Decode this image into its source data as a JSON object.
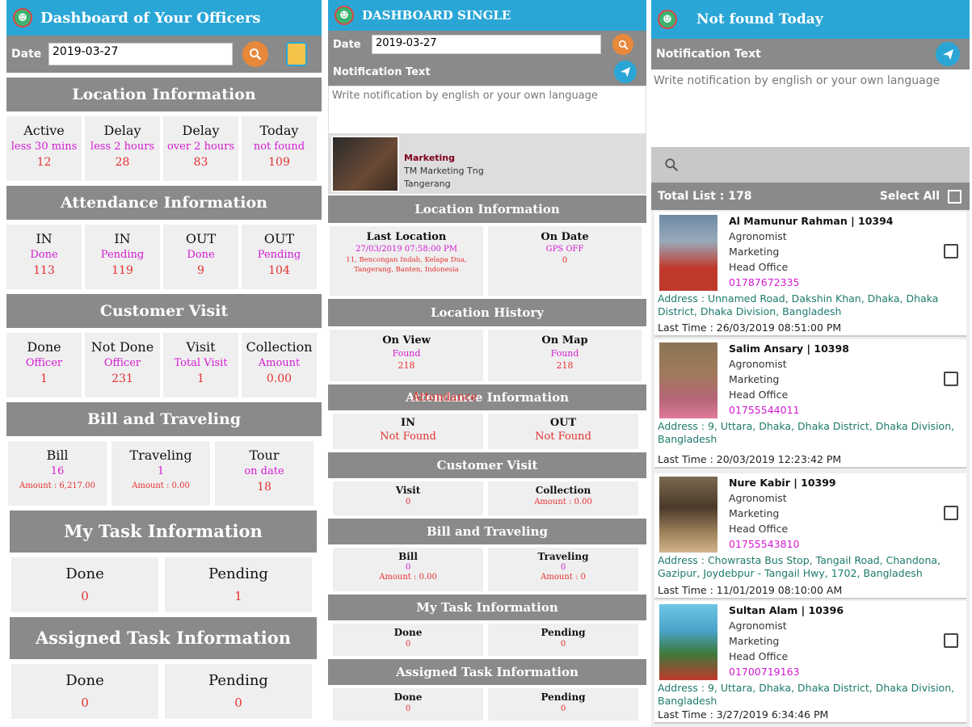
{
  "p1": {
    "title": "Dashboard of Your Officers",
    "date_label": "Date",
    "date_value": "2019-03-27",
    "sections": {
      "location": {
        "title": "Location Information",
        "cells": [
          {
            "h": "Active",
            "s": "less 30 mins",
            "v": "12"
          },
          {
            "h": "Delay",
            "s": "less 2 hours",
            "v": "28"
          },
          {
            "h": "Delay",
            "s": "over 2 hours",
            "v": "83"
          },
          {
            "h": "Today",
            "s": "not found",
            "v": "109"
          }
        ]
      },
      "attendance": {
        "title": "Attendance Information",
        "cells": [
          {
            "h": "IN",
            "s": "Done",
            "v": "113"
          },
          {
            "h": "IN",
            "s": "Pending",
            "v": "119"
          },
          {
            "h": "OUT",
            "s": "Done",
            "v": "9"
          },
          {
            "h": "OUT",
            "s": "Pending",
            "v": "104"
          }
        ]
      },
      "customer": {
        "title": "Customer Visit",
        "cells": [
          {
            "h": "Done",
            "s": "Officer",
            "v": "1"
          },
          {
            "h": "Not Done",
            "s": "Officer",
            "v": "231"
          },
          {
            "h": "Visit",
            "s": "Total Visit",
            "v": "1"
          },
          {
            "h": "Collection",
            "s": "Amount",
            "v": "0.00"
          }
        ]
      },
      "bill": {
        "title": "Bill and Traveling",
        "cells": [
          {
            "h": "Bill",
            "s": "16",
            "v": "Amount : 6,217.00"
          },
          {
            "h": "Traveling",
            "s": "1",
            "v": "Amount : 0.00"
          },
          {
            "h": "Tour",
            "s": "on date",
            "v": "18"
          }
        ]
      },
      "task": {
        "title": "My Task Information",
        "cells": [
          {
            "h": "Done",
            "v": "0"
          },
          {
            "h": "Pending",
            "v": "1"
          }
        ]
      },
      "assigned": {
        "title": "Assigned Task Information",
        "cells": [
          {
            "h": "Done",
            "v": "0"
          },
          {
            "h": "Pending",
            "v": "0"
          }
        ]
      }
    }
  },
  "p2": {
    "title": "DASHBOARD SINGLE",
    "date_label": "Date",
    "date_value": "2019-03-27",
    "notification_label": "Notification Text",
    "notification_placeholder": "Write notification by english or your own language",
    "profile": {
      "dept": "Marketing",
      "designation": "TM Marketing Tng",
      "location": "Tangerang"
    },
    "location": {
      "title": "Location Information",
      "last": {
        "h": "Last Location",
        "date": "27/03/2019 07:58:00 PM",
        "addr": "11, Bencongan Indah, Kelapa Dua, Tangerang, Banten, Indonesia"
      },
      "ondate": {
        "h": "On Date",
        "s": "GPS OFF",
        "v": "0"
      }
    },
    "history": {
      "title": "Location History",
      "cells": [
        {
          "h": "On View",
          "s": "Found",
          "v": "218"
        },
        {
          "h": "On Map",
          "s": "Found",
          "v": "218"
        }
      ]
    },
    "attendance": {
      "title": "Attendance Information",
      "overlay": "Attendance",
      "cells": [
        {
          "h": "IN",
          "v": "Not Found"
        },
        {
          "h": "OUT",
          "v": "Not Found"
        }
      ]
    },
    "customer": {
      "title": "Customer Visit",
      "cells": [
        {
          "h": "Visit",
          "v": "0"
        },
        {
          "h": "Collection",
          "v": "Amount : 0.00"
        }
      ]
    },
    "bill": {
      "title": "Bill and Traveling",
      "cells": [
        {
          "h": "Bill",
          "s": "0",
          "v": "Amount : 0.00"
        },
        {
          "h": "Traveling",
          "s": "0",
          "v": "Amount : 0"
        }
      ]
    },
    "task": {
      "title": "My Task Information",
      "cells": [
        {
          "h": "Done",
          "v": "0"
        },
        {
          "h": "Pending",
          "v": "0"
        }
      ]
    },
    "assigned": {
      "title": "Assigned Task Information",
      "cells": [
        {
          "h": "Done",
          "v": "0"
        },
        {
          "h": "Pending",
          "v": "0"
        }
      ]
    }
  },
  "p3": {
    "title": "Not found Today",
    "notification_label": "Notification Text",
    "notification_placeholder": "Write notification by english or your own language",
    "total_list": "Total List : 178",
    "select_all": "Select All",
    "officers": [
      {
        "name": "Al Mamunur Rahman | 10394",
        "role": "Agronomist",
        "dept": "Marketing",
        "office": "Head Office",
        "phone": "01787672335",
        "address": "Address : Unnamed Road, Dakshin Khan, Dhaka, Dhaka District, Dhaka Division, Bangladesh",
        "last": "Last Time : 26/03/2019 08:51:00 PM"
      },
      {
        "name": "Salim Ansary | 10398",
        "role": "Agronomist",
        "dept": "Marketing",
        "office": "Head Office",
        "phone": "01755544011",
        "address": "Address : 9, Uttara, Dhaka, Dhaka District, Dhaka Division, Bangladesh",
        "last": "Last Time : 20/03/2019 12:23:42 PM"
      },
      {
        "name": "Nure Kabir | 10399",
        "role": "Agronomist",
        "dept": "Marketing",
        "office": "Head Office",
        "phone": "01755543810",
        "address": "Address : Chowrasta Bus Stop, Tangail Road, Chandona, Gazipur, Joydebpur - Tangail Hwy, 1702, Bangladesh",
        "last": "Last Time : 11/01/2019 08:10:00 AM"
      },
      {
        "name": "Sultan Alam | 10396",
        "role": "Agronomist",
        "dept": "Marketing",
        "office": "Head Office",
        "phone": "01700719163",
        "address": "Address : 9, Uttara, Dhaka, Dhaka District, Dhaka Division, Bangladesh",
        "last": "Last Time : 3/27/2019 6:34:46 PM"
      }
    ]
  },
  "colors": {
    "appbar": "#2aa6d6",
    "section": "#8a8a8a",
    "cell": "#efefef",
    "pink": "#d21ad2",
    "red": "#e53030",
    "search_btn": "#e8883a",
    "send_btn": "#2aa6d6"
  },
  "icons": {
    "search": "search-icon",
    "send": "send-icon",
    "calendar": "calendar-icon",
    "logo": "app-logo-icon"
  }
}
